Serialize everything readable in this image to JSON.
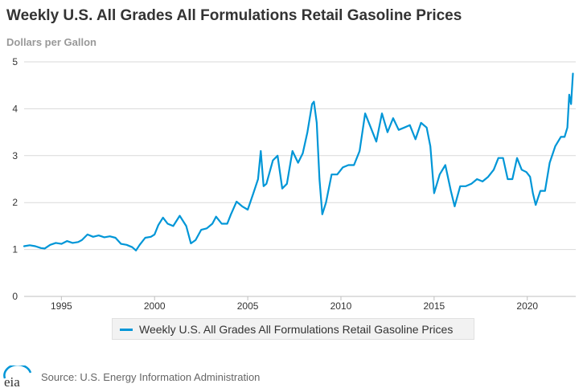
{
  "title": "Weekly U.S. All Grades All Formulations Retail Gasoline Prices",
  "units_label": "Dollars per Gallon",
  "legend_label": "Weekly U.S. All Grades All Formulations Retail Gasoline Prices",
  "source": "Source: U.S. Energy Information Administration",
  "logo_text": "eia",
  "colors": {
    "series": "#0096d7",
    "grid": "#d9d9d9",
    "text": "#333333",
    "logo_arc": "#0096d7"
  },
  "chart_data": {
    "type": "line",
    "title": "Weekly U.S. All Grades All Formulations Retail Gasoline Prices",
    "ylabel": "Dollars per Gallon",
    "xlabel": "",
    "xlim": [
      1993.0,
      2022.6
    ],
    "ylim": [
      0,
      5
    ],
    "y_ticks": [
      0,
      1,
      2,
      3,
      4,
      5
    ],
    "x_ticks": [
      1995,
      2000,
      2005,
      2010,
      2015,
      2020
    ],
    "grid": "horizontal",
    "legend_position": "bottom",
    "series": [
      {
        "name": "Weekly U.S. All Grades All Formulations Retail Gasoline Prices",
        "x": [
          1993.0,
          1993.3,
          1993.6,
          1993.9,
          1994.1,
          1994.4,
          1994.7,
          1995.0,
          1995.3,
          1995.6,
          1995.9,
          1996.1,
          1996.4,
          1996.7,
          1997.0,
          1997.3,
          1997.6,
          1997.9,
          1998.2,
          1998.5,
          1998.8,
          1999.0,
          1999.2,
          1999.5,
          1999.8,
          2000.0,
          2000.2,
          2000.45,
          2000.7,
          2001.0,
          2001.35,
          2001.7,
          2001.95,
          2002.2,
          2002.5,
          2002.8,
          2003.1,
          2003.3,
          2003.6,
          2003.9,
          2004.1,
          2004.4,
          2004.7,
          2005.0,
          2005.3,
          2005.55,
          2005.7,
          2005.85,
          2006.0,
          2006.35,
          2006.6,
          2006.85,
          2007.1,
          2007.4,
          2007.7,
          2007.95,
          2008.2,
          2008.45,
          2008.55,
          2008.7,
          2008.85,
          2009.0,
          2009.2,
          2009.5,
          2009.8,
          2010.1,
          2010.4,
          2010.7,
          2011.0,
          2011.3,
          2011.6,
          2011.9,
          2012.2,
          2012.5,
          2012.8,
          2013.1,
          2013.4,
          2013.7,
          2014.0,
          2014.3,
          2014.6,
          2014.8,
          2015.0,
          2015.3,
          2015.6,
          2015.9,
          2016.1,
          2016.4,
          2016.7,
          2017.0,
          2017.3,
          2017.6,
          2017.9,
          2018.2,
          2018.45,
          2018.7,
          2018.95,
          2019.2,
          2019.45,
          2019.7,
          2019.95,
          2020.15,
          2020.3,
          2020.45,
          2020.7,
          2020.95,
          2021.2,
          2021.5,
          2021.8,
          2022.0,
          2022.15,
          2022.25,
          2022.35,
          2022.45
        ],
        "values": [
          1.07,
          1.09,
          1.07,
          1.03,
          1.02,
          1.1,
          1.14,
          1.12,
          1.18,
          1.14,
          1.16,
          1.2,
          1.32,
          1.27,
          1.3,
          1.26,
          1.28,
          1.25,
          1.12,
          1.1,
          1.05,
          0.98,
          1.1,
          1.25,
          1.27,
          1.32,
          1.52,
          1.68,
          1.55,
          1.5,
          1.72,
          1.5,
          1.13,
          1.2,
          1.42,
          1.45,
          1.55,
          1.7,
          1.55,
          1.55,
          1.75,
          2.02,
          1.92,
          1.85,
          2.2,
          2.5,
          3.1,
          2.35,
          2.4,
          2.9,
          3.0,
          2.3,
          2.4,
          3.1,
          2.85,
          3.05,
          3.5,
          4.1,
          4.15,
          3.7,
          2.5,
          1.75,
          2.0,
          2.6,
          2.6,
          2.75,
          2.8,
          2.8,
          3.1,
          3.9,
          3.6,
          3.3,
          3.9,
          3.5,
          3.8,
          3.55,
          3.6,
          3.65,
          3.35,
          3.7,
          3.6,
          3.2,
          2.2,
          2.6,
          2.8,
          2.25,
          1.92,
          2.35,
          2.35,
          2.4,
          2.5,
          2.45,
          2.55,
          2.7,
          2.95,
          2.95,
          2.5,
          2.5,
          2.95,
          2.7,
          2.65,
          2.55,
          2.2,
          1.95,
          2.25,
          2.25,
          2.85,
          3.2,
          3.4,
          3.4,
          3.6,
          4.3,
          4.1,
          4.75
        ]
      }
    ]
  }
}
